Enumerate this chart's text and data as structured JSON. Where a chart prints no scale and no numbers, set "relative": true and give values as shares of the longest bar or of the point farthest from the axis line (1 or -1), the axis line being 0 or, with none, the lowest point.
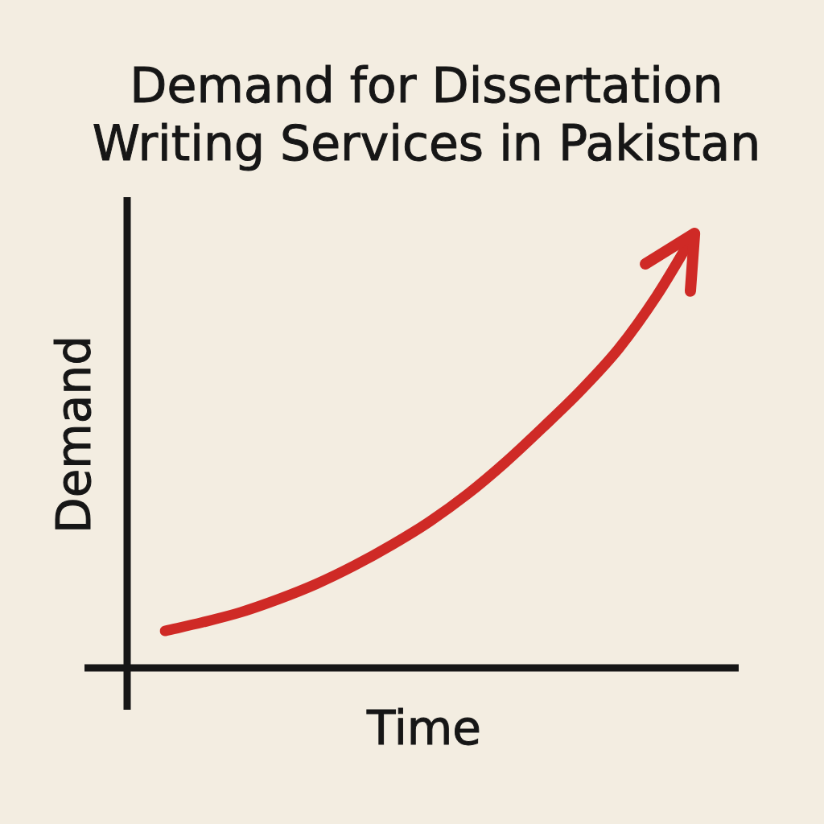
{
  "chart_data": {
    "type": "line",
    "title": "Demand for Dissertation Writing Services in Pakistan",
    "xlabel": "Time",
    "ylabel": "Demand",
    "categories": [
      null,
      null,
      null,
      null,
      null,
      null,
      null,
      null,
      null,
      null,
      null,
      null,
      null,
      null,
      null
    ],
    "values": [
      0.085,
      0.105,
      0.128,
      0.158,
      0.193,
      0.235,
      0.283,
      0.337,
      0.4,
      0.473,
      0.554,
      0.639,
      0.735,
      0.856,
      1
    ],
    "color": "#cf2a26",
    "relative": true,
    "tick_labels": false
  }
}
